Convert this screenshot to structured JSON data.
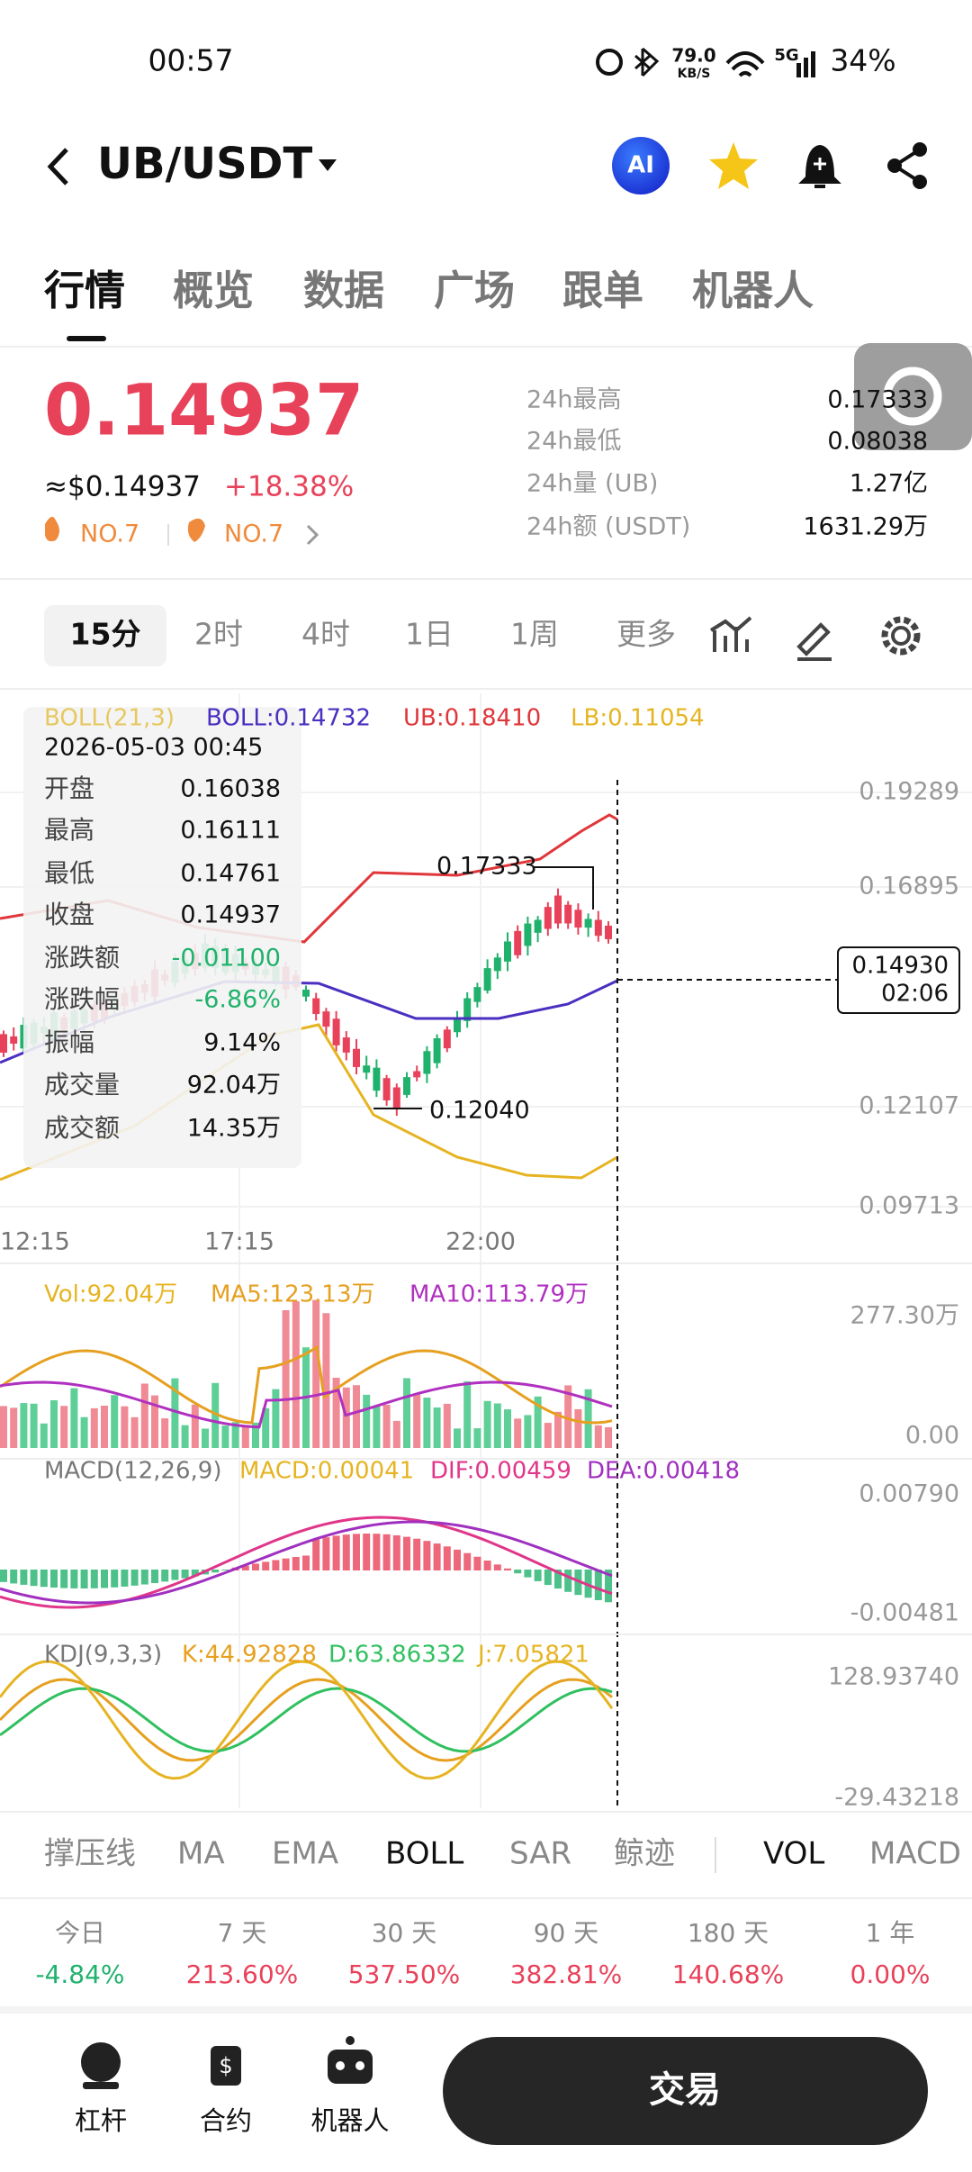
{
  "status": {
    "time": "00:57",
    "speed": "79.0",
    "speed_unit": "KB/S",
    "network": "5G",
    "battery": "34%"
  },
  "header": {
    "pair": "UB/USDT",
    "ai": "AI"
  },
  "tabs": [
    "行情",
    "概览",
    "数据",
    "广场",
    "跟单",
    "机器人"
  ],
  "price": {
    "last": "0.14937",
    "usd": "≈$0.14937",
    "change": "+18.38%",
    "rank1": "NO.7",
    "rank2": "NO.7"
  },
  "stats": [
    {
      "label": "24h最高",
      "value": "0.17333"
    },
    {
      "label": "24h最低",
      "value": "0.08038"
    },
    {
      "label": "24h量 (UB)",
      "value": "1.27亿"
    },
    {
      "label": "24h额 (USDT)",
      "value": "1631.29万"
    }
  ],
  "intervals": [
    "15分",
    "2时",
    "4时",
    "1日",
    "1周",
    "更多"
  ],
  "boll": {
    "title": "BOLL(21,3)",
    "mid": "BOLL:0.14732",
    "ub": "UB:0.18410",
    "lb": "LB:0.11054"
  },
  "tooltip": {
    "date": "2026-05-03 00:45",
    "rows": [
      {
        "label": "开盘",
        "value": "0.16038"
      },
      {
        "label": "最高",
        "value": "0.16111"
      },
      {
        "label": "最低",
        "value": "0.14761"
      },
      {
        "label": "收盘",
        "value": "0.14937"
      },
      {
        "label": "涨跌额",
        "value": "-0.01100"
      },
      {
        "label": "涨跌幅",
        "value": "-6.86%"
      },
      {
        "label": "振幅",
        "value": "9.14%"
      },
      {
        "label": "成交量",
        "value": "92.04万"
      },
      {
        "label": "成交额",
        "value": "14.35万"
      }
    ]
  },
  "price_axis": [
    "0.19289",
    "0.16895",
    "0.12107",
    "0.09713"
  ],
  "current_marker": {
    "price": "0.14930",
    "countdown": "02:06"
  },
  "high_label": "0.17333",
  "low_label": "0.12040",
  "time_axis": [
    "12:15",
    "17:15",
    "22:00"
  ],
  "vol": {
    "vol": "Vol:92.04万",
    "ma5": "MA5:123.13万",
    "ma10": "MA10:113.79万",
    "max": "277.30万",
    "min": "0.00"
  },
  "macd": {
    "title": "MACD(12,26,9)",
    "macd": "MACD:0.00041",
    "dif": "DIF:0.00459",
    "dea": "DEA:0.00418",
    "max": "0.00790",
    "min": "-0.00481"
  },
  "kdj": {
    "title": "KDJ(9,3,3)",
    "k": "K:44.92828",
    "d": "D:63.86332",
    "j": "J:7.05821",
    "max": "128.93740",
    "min": "-29.43218"
  },
  "indicators": [
    "撑压线",
    "MA",
    "EMA",
    "BOLL",
    "SAR",
    "鲸迹",
    "VOL",
    "MACD"
  ],
  "performance": [
    {
      "period": "今日",
      "change": "-4.84%"
    },
    {
      "period": "7 天",
      "change": "213.60%"
    },
    {
      "period": "30 天",
      "change": "537.50%"
    },
    {
      "period": "90 天",
      "change": "382.81%"
    },
    {
      "period": "180 天",
      "change": "140.68%"
    },
    {
      "period": "1 年",
      "change": "0.00%"
    }
  ],
  "nav": [
    "杠杆",
    "合约",
    "机器人"
  ],
  "trade": "交易"
}
